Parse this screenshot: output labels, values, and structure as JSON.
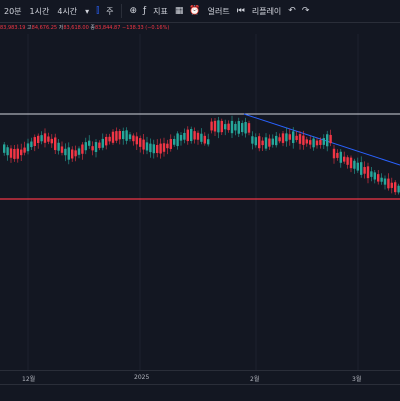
{
  "toolbar": {
    "items": [
      "20분",
      "1시간",
      "4시간"
    ],
    "chart_type_icon": "candlestick-icon",
    "compare_label": "주",
    "indicators_label": "지표",
    "alert_label": "얼러트",
    "replay_label": "리플레이"
  },
  "ohlc": {
    "open": "83,983.19",
    "high_label": "고",
    "high": "84,676.25",
    "low_label": "저",
    "low": "83,618.00",
    "close_label": "종",
    "close": "83,844.87",
    "change": "−138.33 (−0.16%)"
  },
  "colors": {
    "up": "#26a69a",
    "down": "#f23645",
    "resistance": "#d1d4dc",
    "support": "#f23645",
    "trendline": "#2962ff",
    "background": "#131722"
  },
  "x_axis_labels": [
    "12월",
    "2025",
    "2월",
    "3월"
  ],
  "chart_data": {
    "type": "candlestick",
    "x": [
      "12월",
      "2025",
      "2월",
      "3월"
    ],
    "horizontal_lines": [
      {
        "name": "resistance",
        "color": "#d1d4dc"
      },
      {
        "name": "support",
        "color": "#f23645"
      }
    ],
    "trendline": {
      "color": "#2962ff"
    },
    "ohlc_last": {
      "open": 83983.19,
      "high": 84676.25,
      "low": 83618.0,
      "close": 83844.87,
      "change": -138.33,
      "change_pct": -0.16
    }
  }
}
